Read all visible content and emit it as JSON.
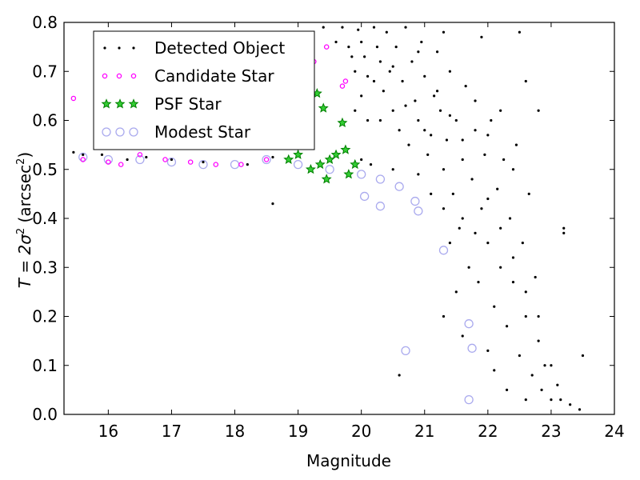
{
  "chart_data": {
    "type": "scatter",
    "title": "",
    "xlabel": "Magnitude",
    "ylabel": {
      "prefix": "T = 2σ",
      "exp": "2",
      "unit_prefix": " (arcsec",
      "unit_exp": "2",
      "suffix": ")"
    },
    "xlim": [
      15.3,
      24
    ],
    "ylim": [
      0.0,
      0.8
    ],
    "xticks": [
      "16",
      "17",
      "18",
      "19",
      "20",
      "21",
      "22",
      "23",
      "24"
    ],
    "yticks": [
      "0.0",
      "0.1",
      "0.2",
      "0.3",
      "0.4",
      "0.5",
      "0.6",
      "0.7",
      "0.8"
    ],
    "grid": false,
    "legend_position": "top-left",
    "series": [
      {
        "name": "Detected Object",
        "marker": "dot",
        "color": "#000000",
        "points": [
          [
            15.45,
            0.535
          ],
          [
            15.6,
            0.53
          ],
          [
            15.9,
            0.53
          ],
          [
            16.3,
            0.52
          ],
          [
            16.6,
            0.525
          ],
          [
            17.0,
            0.52
          ],
          [
            17.5,
            0.515
          ],
          [
            18.2,
            0.51
          ],
          [
            18.6,
            0.525
          ],
          [
            18.6,
            0.43
          ],
          [
            19.0,
            0.78
          ],
          [
            19.4,
            0.79
          ],
          [
            19.6,
            0.76
          ],
          [
            19.7,
            0.79
          ],
          [
            19.8,
            0.75
          ],
          [
            19.85,
            0.73
          ],
          [
            19.9,
            0.7
          ],
          [
            19.95,
            0.785
          ],
          [
            20.0,
            0.76
          ],
          [
            20.0,
            0.52
          ],
          [
            20.05,
            0.73
          ],
          [
            20.1,
            0.69
          ],
          [
            20.15,
            0.51
          ],
          [
            20.2,
            0.79
          ],
          [
            20.25,
            0.75
          ],
          [
            20.3,
            0.72
          ],
          [
            20.35,
            0.66
          ],
          [
            20.4,
            0.78
          ],
          [
            20.45,
            0.7
          ],
          [
            20.5,
            0.62
          ],
          [
            20.55,
            0.75
          ],
          [
            20.6,
            0.58
          ],
          [
            20.65,
            0.68
          ],
          [
            20.7,
            0.79
          ],
          [
            20.75,
            0.55
          ],
          [
            20.8,
            0.72
          ],
          [
            20.85,
            0.64
          ],
          [
            20.9,
            0.6
          ],
          [
            20.95,
            0.76
          ],
          [
            21.0,
            0.69
          ],
          [
            21.05,
            0.53
          ],
          [
            21.1,
            0.57
          ],
          [
            21.15,
            0.65
          ],
          [
            21.2,
            0.74
          ],
          [
            21.25,
            0.62
          ],
          [
            21.3,
            0.5
          ],
          [
            21.35,
            0.56
          ],
          [
            21.4,
            0.7
          ],
          [
            21.45,
            0.45
          ],
          [
            21.5,
            0.6
          ],
          [
            21.55,
            0.38
          ],
          [
            21.6,
            0.52
          ],
          [
            21.65,
            0.67
          ],
          [
            21.7,
            0.3
          ],
          [
            21.75,
            0.48
          ],
          [
            21.8,
            0.58
          ],
          [
            21.85,
            0.27
          ],
          [
            21.9,
            0.42
          ],
          [
            21.95,
            0.53
          ],
          [
            22.0,
            0.35
          ],
          [
            22.05,
            0.6
          ],
          [
            22.1,
            0.22
          ],
          [
            22.15,
            0.46
          ],
          [
            22.2,
            0.3
          ],
          [
            22.25,
            0.52
          ],
          [
            22.3,
            0.18
          ],
          [
            22.35,
            0.4
          ],
          [
            22.4,
            0.27
          ],
          [
            22.45,
            0.55
          ],
          [
            22.5,
            0.12
          ],
          [
            22.55,
            0.35
          ],
          [
            22.6,
            0.2
          ],
          [
            22.65,
            0.45
          ],
          [
            22.7,
            0.08
          ],
          [
            22.75,
            0.28
          ],
          [
            22.8,
            0.15
          ],
          [
            22.85,
            0.05
          ],
          [
            22.9,
            0.1
          ],
          [
            23.0,
            0.03
          ],
          [
            23.1,
            0.06
          ],
          [
            23.2,
            0.38
          ],
          [
            23.2,
            0.37
          ],
          [
            23.3,
            0.02
          ],
          [
            23.5,
            0.12
          ],
          [
            23.45,
            0.01
          ],
          [
            21.3,
            0.2
          ],
          [
            21.5,
            0.25
          ],
          [
            22.0,
            0.13
          ],
          [
            22.3,
            0.05
          ],
          [
            22.6,
            0.03
          ],
          [
            23.15,
            0.03
          ],
          [
            20.6,
            0.08
          ],
          [
            21.6,
            0.16
          ],
          [
            22.1,
            0.09
          ],
          [
            20.9,
            0.49
          ],
          [
            21.1,
            0.45
          ],
          [
            21.3,
            0.42
          ],
          [
            21.4,
            0.35
          ],
          [
            21.6,
            0.4
          ],
          [
            21.8,
            0.37
          ],
          [
            22.0,
            0.44
          ],
          [
            22.2,
            0.38
          ],
          [
            22.4,
            0.32
          ],
          [
            22.6,
            0.25
          ],
          [
            22.8,
            0.2
          ],
          [
            23.0,
            0.1
          ],
          [
            20.3,
            0.6
          ],
          [
            20.5,
            0.5
          ],
          [
            20.7,
            0.63
          ],
          [
            21.0,
            0.58
          ],
          [
            21.2,
            0.66
          ],
          [
            21.4,
            0.61
          ],
          [
            21.6,
            0.56
          ],
          [
            21.8,
            0.64
          ],
          [
            22.0,
            0.57
          ],
          [
            22.2,
            0.62
          ],
          [
            22.4,
            0.5
          ],
          [
            22.6,
            0.68
          ],
          [
            22.8,
            0.62
          ],
          [
            22.5,
            0.78
          ],
          [
            21.9,
            0.77
          ],
          [
            21.3,
            0.78
          ],
          [
            20.9,
            0.74
          ],
          [
            20.5,
            0.71
          ],
          [
            20.2,
            0.68
          ],
          [
            20.0,
            0.65
          ],
          [
            19.9,
            0.62
          ],
          [
            20.1,
            0.6
          ]
        ]
      },
      {
        "name": "Candidate Star",
        "marker": "circle-small",
        "color": "#ff00ff",
        "points": [
          [
            15.45,
            0.645
          ],
          [
            15.6,
            0.52
          ],
          [
            16.0,
            0.515
          ],
          [
            16.2,
            0.51
          ],
          [
            16.5,
            0.53
          ],
          [
            16.9,
            0.52
          ],
          [
            17.3,
            0.515
          ],
          [
            17.7,
            0.51
          ],
          [
            18.1,
            0.51
          ],
          [
            18.5,
            0.52
          ],
          [
            19.15,
            0.755
          ],
          [
            19.25,
            0.72
          ],
          [
            19.45,
            0.75
          ],
          [
            19.7,
            0.67
          ],
          [
            19.75,
            0.68
          ]
        ]
      },
      {
        "name": "PSF Star",
        "marker": "star",
        "color": "#008000",
        "points": [
          [
            18.85,
            0.52
          ],
          [
            19.0,
            0.53
          ],
          [
            19.2,
            0.5
          ],
          [
            19.3,
            0.655
          ],
          [
            19.4,
            0.625
          ],
          [
            19.5,
            0.52
          ],
          [
            19.6,
            0.53
          ],
          [
            19.7,
            0.595
          ],
          [
            19.75,
            0.54
          ],
          [
            19.8,
            0.49
          ],
          [
            19.9,
            0.51
          ],
          [
            19.35,
            0.51
          ],
          [
            19.45,
            0.48
          ]
        ]
      },
      {
        "name": "Modest Star",
        "marker": "circle-large",
        "color": "#aaaaee",
        "points": [
          [
            15.6,
            0.525
          ],
          [
            16.0,
            0.52
          ],
          [
            16.5,
            0.52
          ],
          [
            17.0,
            0.515
          ],
          [
            17.5,
            0.51
          ],
          [
            18.0,
            0.51
          ],
          [
            18.5,
            0.52
          ],
          [
            19.0,
            0.51
          ],
          [
            19.5,
            0.5
          ],
          [
            20.0,
            0.49
          ],
          [
            20.3,
            0.48
          ],
          [
            20.05,
            0.445
          ],
          [
            20.3,
            0.425
          ],
          [
            20.6,
            0.465
          ],
          [
            20.85,
            0.435
          ],
          [
            20.9,
            0.415
          ],
          [
            21.3,
            0.335
          ],
          [
            21.7,
            0.185
          ],
          [
            21.75,
            0.135
          ],
          [
            20.7,
            0.13
          ],
          [
            21.7,
            0.03
          ]
        ]
      }
    ]
  }
}
